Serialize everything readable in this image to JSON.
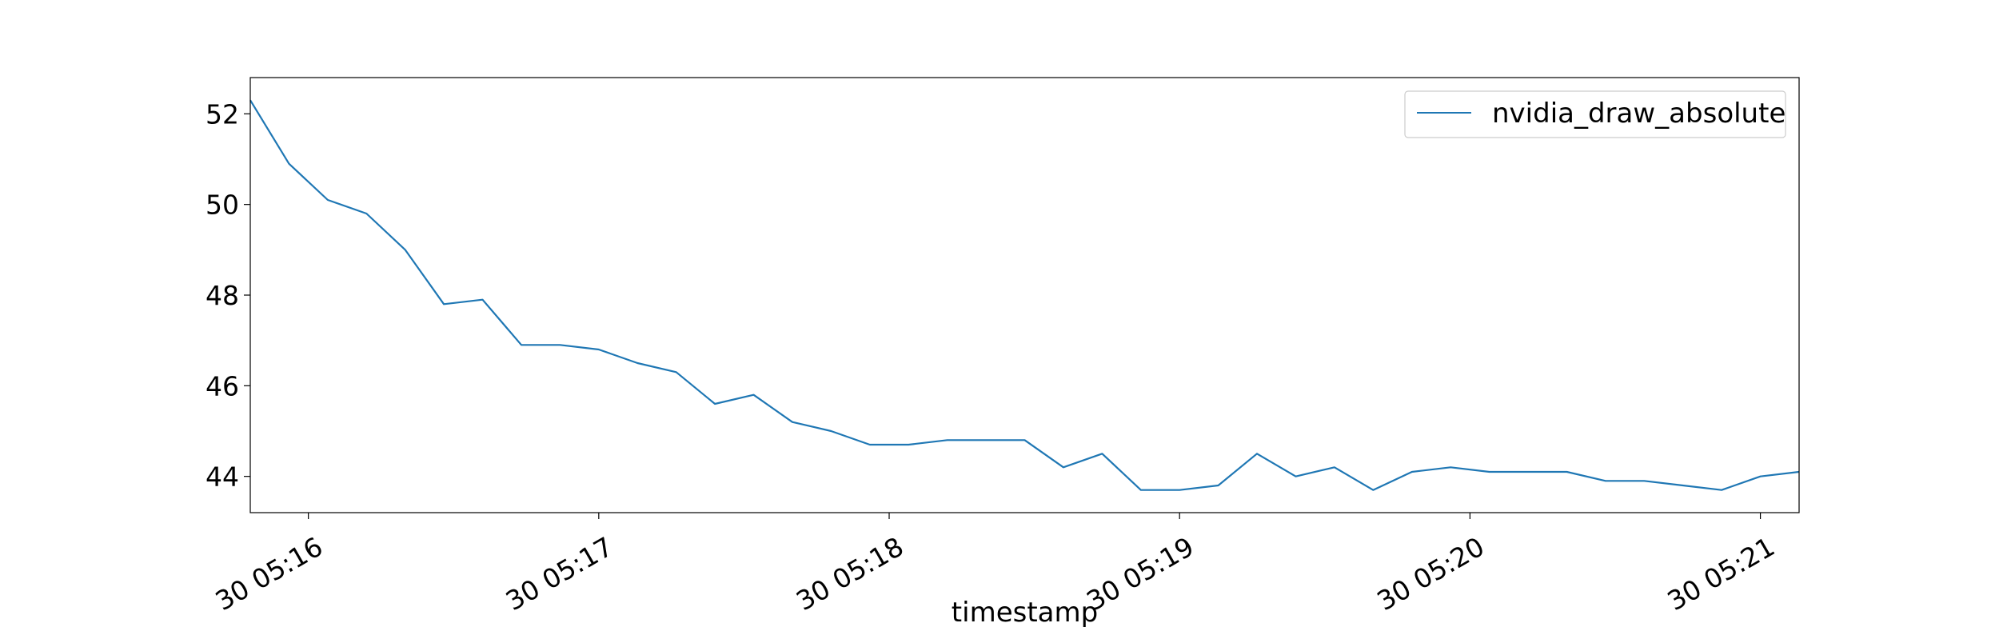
{
  "chart_data": {
    "type": "line",
    "xlabel": "timestamp",
    "ylabel": "",
    "ylim": [
      43.2,
      52.8
    ],
    "xlim": [
      "30 05:15:48",
      "30 05:21:08"
    ],
    "y_ticks": [
      44,
      46,
      48,
      50,
      52
    ],
    "x_ticks": [
      {
        "at": "30 05:16:00",
        "label": "30 05:16"
      },
      {
        "at": "30 05:17:00",
        "label": "30 05:17"
      },
      {
        "at": "30 05:18:00",
        "label": "30 05:18"
      },
      {
        "at": "30 05:19:00",
        "label": "30 05:19"
      },
      {
        "at": "30 05:20:00",
        "label": "30 05:20"
      },
      {
        "at": "30 05:21:00",
        "label": "30 05:21"
      }
    ],
    "grid": false,
    "legend_position": "top-right",
    "series": [
      {
        "name": "nvidia_draw_absolute",
        "color": "#1f77b4",
        "x": [
          "30 05:15:48",
          "30 05:15:56",
          "30 05:16:04",
          "30 05:16:12",
          "30 05:16:20",
          "30 05:16:28",
          "30 05:16:36",
          "30 05:16:44",
          "30 05:16:52",
          "30 05:17:00",
          "30 05:17:08",
          "30 05:17:16",
          "30 05:17:24",
          "30 05:17:32",
          "30 05:17:40",
          "30 05:17:48",
          "30 05:17:56",
          "30 05:18:04",
          "30 05:18:12",
          "30 05:18:20",
          "30 05:18:28",
          "30 05:18:36",
          "30 05:18:44",
          "30 05:18:52",
          "30 05:19:00",
          "30 05:19:08",
          "30 05:19:16",
          "30 05:19:24",
          "30 05:19:32",
          "30 05:19:40",
          "30 05:19:48",
          "30 05:19:56",
          "30 05:20:04",
          "30 05:20:12",
          "30 05:20:20",
          "30 05:20:28",
          "30 05:20:36",
          "30 05:20:44",
          "30 05:20:52",
          "30 05:21:00",
          "30 05:21:08"
        ],
        "values": [
          52.3,
          50.9,
          50.1,
          49.8,
          49.0,
          47.8,
          47.9,
          46.9,
          46.9,
          46.8,
          46.5,
          46.3,
          45.6,
          45.8,
          45.2,
          45.0,
          44.7,
          44.7,
          44.8,
          44.8,
          44.8,
          44.2,
          44.5,
          43.7,
          43.7,
          43.8,
          44.5,
          44.0,
          44.2,
          43.7,
          44.1,
          44.2,
          44.1,
          44.1,
          44.1,
          43.9,
          43.9,
          43.8,
          43.7,
          44.0,
          44.1
        ]
      }
    ]
  }
}
